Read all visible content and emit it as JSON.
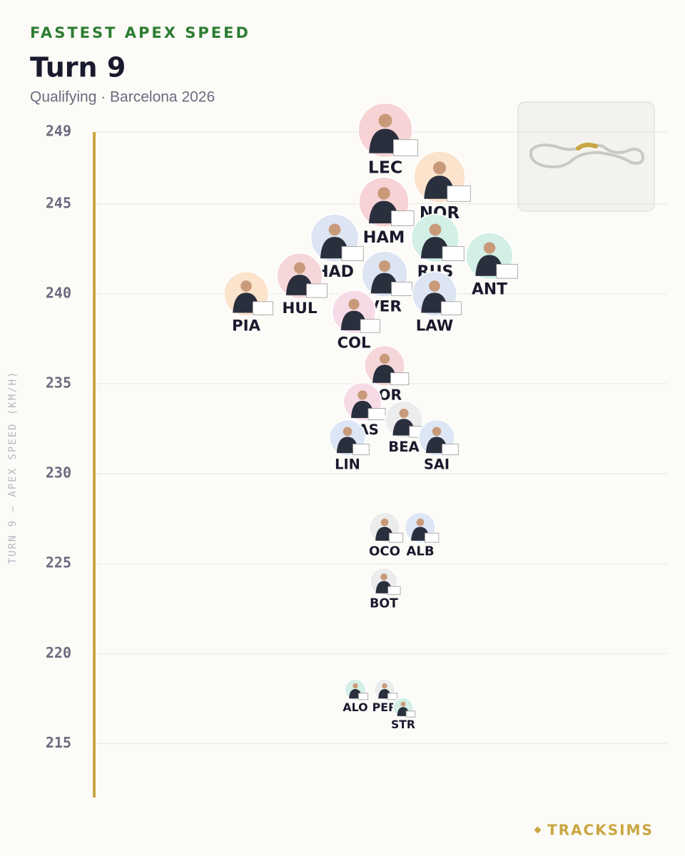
{
  "chart_data": {
    "type": "scatter",
    "kicker": "FASTEST APEX SPEED",
    "title": "Turn 9",
    "subtitle": "Qualifying · Barcelona 2026",
    "y_label": "TURN 9 — APEX SPEED (KM/H)",
    "brand": "TRACKSIMS",
    "categories": [
      "LEC",
      "NOR",
      "HAM",
      "HAD",
      "RUS",
      "ANT",
      "HUL",
      "VER",
      "PIA",
      "LAW",
      "COL",
      "BOR",
      "GAS",
      "BEA",
      "SAI",
      "LIN",
      "OCO",
      "ALB",
      "BOT",
      "ALO",
      "PER",
      "STR"
    ],
    "values": [
      249.1,
      246.5,
      245.1,
      243.1,
      243.1,
      242.1,
      241.0,
      241.1,
      240.0,
      240.0,
      239.0,
      236.0,
      234.0,
      233.0,
      232.0,
      232.0,
      227.0,
      227.0,
      224.0,
      218.0,
      218.0,
      217.0
    ],
    "colors": [
      "#f7d3d6",
      "#fbe3cc",
      "#f7d3d6",
      "#dde5f2",
      "#d3efe6",
      "#d3efe6",
      "#f5d7da",
      "#dde5f2",
      "#fbe3cc",
      "#dde5f2",
      "#f6dbe6",
      "#f5d7da",
      "#f6dbe6",
      "#ececec",
      "#dde6f4",
      "#dde6f4",
      "#ececec",
      "#dde6f4",
      "#ececec",
      "#d3efe6",
      "#ececec",
      "#d3efe6"
    ],
    "ylim": [
      212,
      249
    ],
    "yticks": [
      215,
      220,
      225,
      230,
      235,
      240,
      245,
      249
    ],
    "grid": true
  }
}
